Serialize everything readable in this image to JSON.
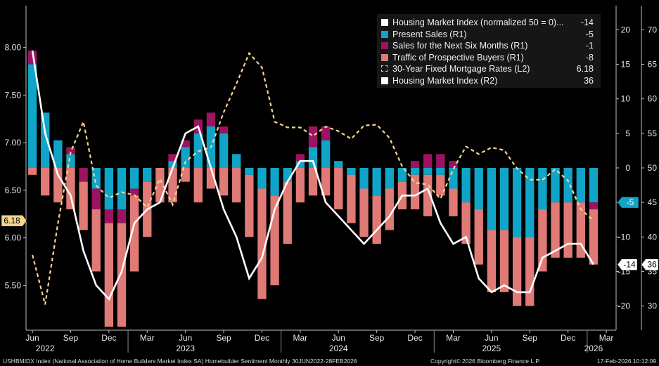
{
  "legend": [
    {
      "label": "Housing Market Index (normalized 50 = 0)...",
      "value": "-14",
      "color": "#ffffff",
      "style": "box"
    },
    {
      "label": "Present Sales (R1)",
      "value": "-5",
      "color": "#10a4c8",
      "style": "box"
    },
    {
      "label": "Sales for the Next Six Months (R1)",
      "value": "-1",
      "color": "#9c1362",
      "style": "box"
    },
    {
      "label": "Traffic of Prospective Buyers (R1)",
      "value": "-8",
      "color": "#e07a76",
      "style": "box"
    },
    {
      "label": "30-Year Fixed Mortgage Rates (L2)",
      "value": "6.18",
      "color": "#f5d490",
      "style": "dashed"
    },
    {
      "label": "Housing Market Index (R2)",
      "value": "36",
      "color": "#ffffff",
      "style": "box"
    }
  ],
  "footer": {
    "left": "USHBMIDX Index (National Association of Home Builders Market Index SA) Homebuilder Sentiment Monthly 30JUN2022-28FEB2026",
    "center": "Copyright© 2026 Bloomberg Finance L.P.",
    "right": "17-Feb-2026 10:12:09"
  },
  "tags": {
    "rate": "6.18",
    "hmi_norm": "-5",
    "hmi_norm_last": "-14",
    "hmi_last": "36"
  },
  "chart_data": {
    "type": "bar",
    "x_labels": [
      "Jun",
      "Sep",
      "Dec",
      "Mar",
      "Jun",
      "Sep",
      "Dec",
      "Mar",
      "Jun",
      "Sep",
      "Dec",
      "Mar",
      "Jun",
      "Sep",
      "Dec",
      "Mar"
    ],
    "year_labels": [
      {
        "text": "2022",
        "month_index": 1
      },
      {
        "text": "2023",
        "month_index": 12
      },
      {
        "text": "2024",
        "month_index": 24
      },
      {
        "text": "2025",
        "month_index": 36
      },
      {
        "text": "2026",
        "month_index": 44
      }
    ],
    "months": [
      "2022-06",
      "2022-07",
      "2022-08",
      "2022-09",
      "2022-10",
      "2022-11",
      "2022-12",
      "2023-01",
      "2023-02",
      "2023-03",
      "2023-04",
      "2023-05",
      "2023-06",
      "2023-07",
      "2023-08",
      "2023-09",
      "2023-10",
      "2023-11",
      "2023-12",
      "2024-01",
      "2024-02",
      "2024-03",
      "2024-04",
      "2024-05",
      "2024-06",
      "2024-07",
      "2024-08",
      "2024-09",
      "2024-10",
      "2024-11",
      "2024-12",
      "2025-01",
      "2025-02",
      "2025-03",
      "2025-04",
      "2025-05",
      "2025-06",
      "2025-07",
      "2025-08",
      "2025-09",
      "2025-10",
      "2025-11",
      "2025-12",
      "2026-01",
      "2026-02"
    ],
    "left_axis": {
      "ticks": [
        5.5,
        6.0,
        6.5,
        7.0,
        7.5,
        8.0
      ],
      "range": [
        5.03,
        8.44
      ]
    },
    "right_axis_r1": {
      "ticks": [
        -20,
        -15,
        -10,
        -5,
        0,
        5,
        10,
        15,
        20
      ],
      "range": [
        -23.5,
        23.5
      ]
    },
    "right_axis_r2": {
      "ticks": [
        30,
        35,
        40,
        45,
        50,
        55,
        60,
        65,
        70
      ],
      "range": [
        26.5,
        73.5
      ]
    },
    "series": [
      {
        "name": "Present Sales (R1)",
        "axis": "R1",
        "kind": "bar",
        "color": "#10a4c8",
        "values": [
          15,
          8,
          4,
          2,
          0,
          -3,
          -6,
          -6,
          -3,
          -2,
          0,
          1,
          3,
          5,
          6,
          5,
          2,
          -1,
          -3,
          -4,
          -2,
          1,
          3,
          4,
          1,
          -1,
          -3,
          -4,
          -3,
          -2,
          -1,
          -1,
          -1,
          -3,
          -5,
          -6,
          -9,
          -9,
          -10,
          -10,
          -6,
          -5,
          -5,
          -5,
          -5
        ]
      },
      {
        "name": "Sales for the Next Six Months (R1)",
        "axis": "R1",
        "kind": "bar",
        "color": "#9c1362",
        "values": [
          2,
          0,
          0,
          1,
          -2,
          -3,
          -2,
          -2,
          -1,
          0,
          0,
          1,
          1,
          2,
          2,
          1,
          0,
          0,
          0,
          0,
          0,
          1,
          3,
          2,
          0,
          0,
          0,
          0,
          0,
          0,
          1,
          2,
          2,
          1,
          0,
          0,
          0,
          0,
          0,
          0,
          0,
          0,
          0,
          0,
          -1
        ]
      },
      {
        "name": "Traffic of Prospective Buyers (R1)",
        "axis": "R1",
        "kind": "bar",
        "color": "#e07a76",
        "values": [
          -1,
          -4,
          -5,
          -6,
          -7,
          -9,
          -15,
          -15,
          -11,
          -8,
          -5,
          -5,
          -2,
          -5,
          -3,
          -4,
          -5,
          -9,
          -16,
          -13,
          -9,
          -5,
          -4,
          -4,
          -6,
          -7,
          -7,
          -7,
          -6,
          -4,
          -5,
          -6,
          -3,
          -4,
          -6,
          -8,
          -9,
          -9,
          -10,
          -10,
          -9,
          -8,
          -8,
          -8,
          -8
        ]
      },
      {
        "name": "30-Year Fixed Mortgage Rates (L2)",
        "axis": "L",
        "kind": "line",
        "style": "dashed",
        "color": "#f5d490",
        "values": [
          5.82,
          5.3,
          6.15,
          6.9,
          7.22,
          6.55,
          6.42,
          6.48,
          6.45,
          6.32,
          6.62,
          6.35,
          6.8,
          6.91,
          6.95,
          7.32,
          7.62,
          7.94,
          7.79,
          7.22,
          7.16,
          7.16,
          7.07,
          7.17,
          7.12,
          7.04,
          7.18,
          7.19,
          7.05,
          6.75,
          6.58,
          6.56,
          6.41,
          6.72,
          6.96,
          6.88,
          6.95,
          6.92,
          6.73,
          6.61,
          6.61,
          6.72,
          6.6,
          6.3,
          6.18
        ]
      },
      {
        "name": "Housing Market Index (R2)",
        "axis": "R2",
        "kind": "line",
        "color": "#ffffff",
        "values": [
          67,
          55,
          49,
          46,
          38,
          33,
          31,
          35,
          42,
          44,
          45,
          50,
          55,
          56,
          50,
          44,
          40,
          34,
          37,
          44,
          48,
          51,
          51,
          45,
          43,
          41,
          39,
          41,
          43,
          46,
          46,
          47,
          42,
          39,
          40,
          34,
          32,
          33,
          32,
          32,
          37,
          38,
          39,
          39,
          36
        ]
      }
    ]
  }
}
